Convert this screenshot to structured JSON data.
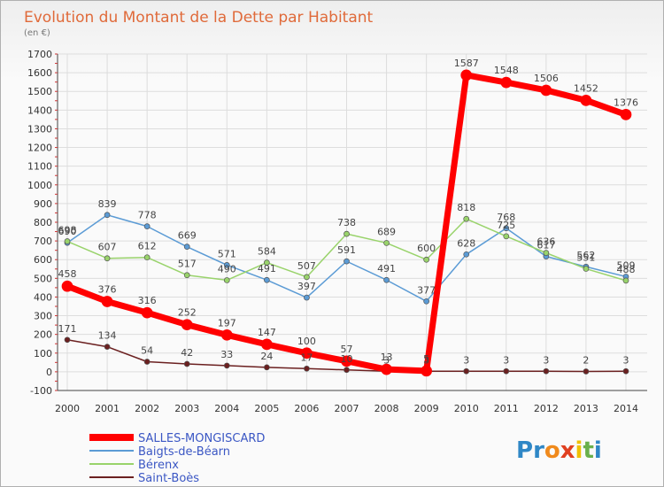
{
  "header": {
    "title": "Evolution du Montant de la Dette par Habitant",
    "subtitle": "(en €)"
  },
  "brand": {
    "logo_text": "Proxiti",
    "letter_colors": [
      "#2f87c6",
      "#2f87c6",
      "#f08a1c",
      "#e04020",
      "#f0c000",
      "#6ab04c",
      "#2f87c6"
    ]
  },
  "chart_data": {
    "type": "line",
    "title": "Evolution du Montant de la Dette par Habitant",
    "subtitle": "(en €)",
    "x": [
      "2000",
      "2001",
      "2002",
      "2003",
      "2004",
      "2005",
      "2006",
      "2007",
      "2008",
      "2009",
      "2010",
      "2011",
      "2012",
      "2013",
      "2014"
    ],
    "ylim": [
      -100,
      1700
    ],
    "yticks": [
      "-100",
      "0",
      "100",
      "200",
      "300",
      "400",
      "500",
      "600",
      "700",
      "800",
      "900",
      "1000",
      "1100",
      "1200",
      "1300",
      "1400",
      "1500",
      "1600",
      "1700"
    ],
    "grid": true,
    "legend_position": "bottom-left",
    "series": [
      {
        "name": "Baigts-de-Béarn",
        "color": "#5b9bd5",
        "values": [
          690,
          839,
          778,
          669,
          571,
          491,
          397,
          591,
          491,
          377,
          628,
          768,
          617,
          562,
          509
        ],
        "labels": [
          "690",
          "839",
          "778",
          "669",
          "571",
          "491",
          "397",
          "591",
          "491",
          "377",
          "628",
          "768",
          "617",
          "562",
          "509"
        ]
      },
      {
        "name": "Bérenx",
        "color": "#99d36b",
        "values": [
          698,
          607,
          612,
          517,
          490,
          584,
          507,
          738,
          689,
          600,
          818,
          725,
          636,
          551,
          488
        ],
        "labels": [
          "698",
          "607",
          "612",
          "517",
          "490",
          "584",
          "507",
          "738",
          "689",
          "600",
          "818",
          "725",
          "636",
          "551",
          "488"
        ]
      },
      {
        "name": "Saint-Boès",
        "color": "#6b2020",
        "values": [
          171,
          134,
          54,
          42,
          33,
          24,
          17,
          10,
          3,
          3,
          3,
          3,
          3,
          2,
          3
        ],
        "labels": [
          "171",
          "134",
          "54",
          "42",
          "33",
          "24",
          "17",
          "10",
          "3",
          "3",
          "3",
          "3",
          "3",
          "2",
          "3"
        ]
      },
      {
        "name": "SALLES-MONGISCARD",
        "color": "#ff0000",
        "values": [
          458,
          376,
          316,
          252,
          197,
          147,
          100,
          57,
          13,
          5,
          1587,
          1548,
          1506,
          1452,
          1376
        ],
        "labels": [
          "458",
          "376",
          "316",
          "252",
          "197",
          "147",
          "100",
          "57",
          "13",
          "5",
          "1587",
          "1548",
          "1506",
          "1452",
          "1376"
        ]
      }
    ],
    "legend": [
      "SALLES-MONGISCARD",
      "Baigts-de-Béarn",
      "Bérenx",
      "Saint-Boès"
    ]
  }
}
